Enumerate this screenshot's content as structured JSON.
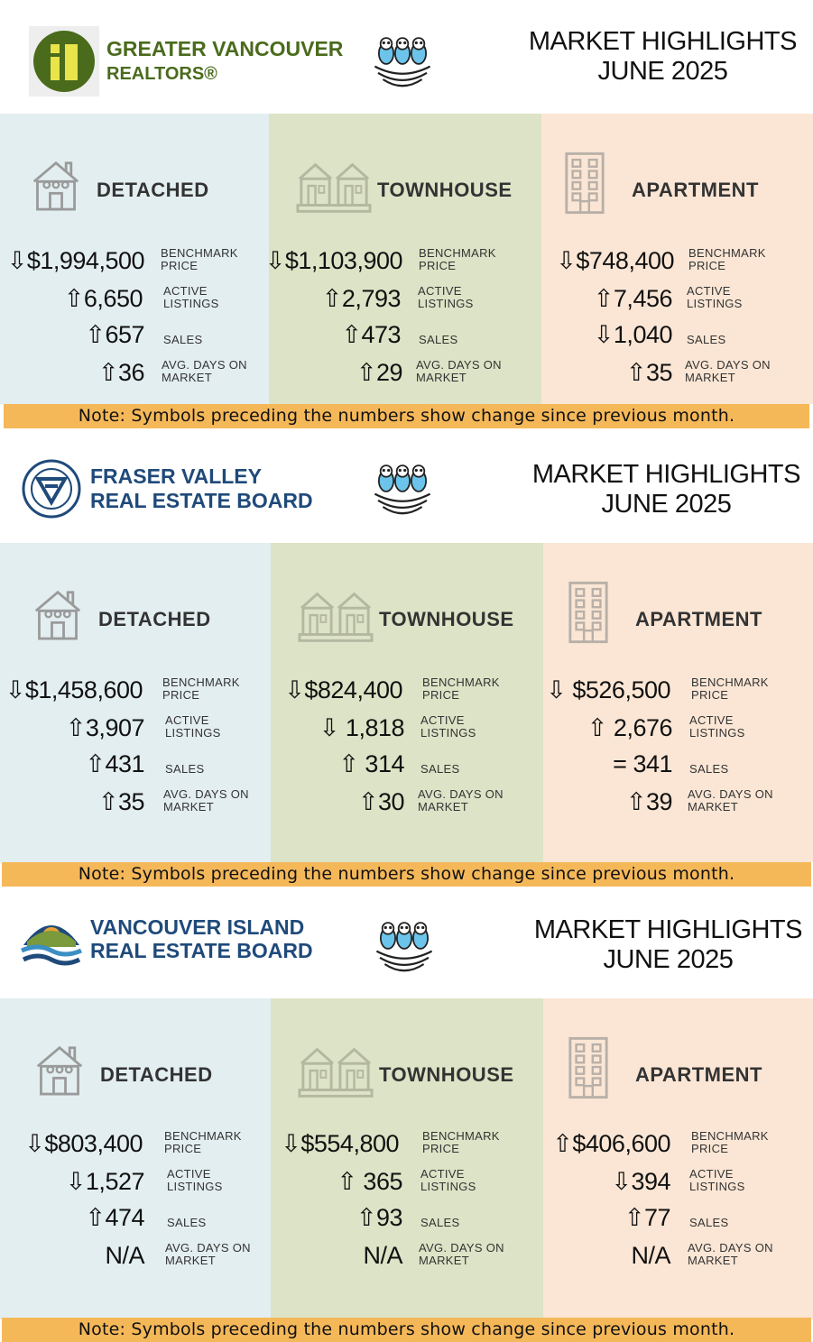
{
  "shared": {
    "title_line1": "MARKET HIGHLIGHTS",
    "title_line2": "JUNE 2025",
    "note": "Note: Symbols preceding the numbers show change since previous month.",
    "labels": {
      "benchmark_1": "BENCHMARK",
      "benchmark_2": "PRICE",
      "active_1": "ACTIVE",
      "active_2": "LISTINGS",
      "sales": "SALES",
      "days_1": "AVG. DAYS ON",
      "days_2": "MARKET"
    },
    "categories": {
      "detached": "DETACHED",
      "townhouse": "TOWNHOUSE",
      "apartment": "APARTMENT"
    }
  },
  "boards": [
    {
      "name_line1": "GREATER VANCOUVER",
      "name_line2": "REALTORS®",
      "logo_color": "#4a6b1c",
      "detached": {
        "price": "⇩$1,994,500",
        "active": "⇧6,650",
        "sales": "⇧657",
        "days": "⇧36"
      },
      "townhouse": {
        "price": "⇩$1,103,900",
        "active": "⇧2,793",
        "sales": "⇧473",
        "days": "⇧29"
      },
      "apartment": {
        "price": "⇩$748,400",
        "active": "⇧7,456",
        "sales": "⇩1,040",
        "days": "⇧35"
      }
    },
    {
      "name_line1": "FRASER VALLEY",
      "name_line2": "REAL ESTATE BOARD",
      "logo_color": "#1f4a7a",
      "detached": {
        "price": "⇩$1,458,600",
        "active": "⇧3,907",
        "sales": "⇧431",
        "days": "⇧35"
      },
      "townhouse": {
        "price": "⇩$824,400",
        "active": "⇩ 1,818",
        "sales": "⇧ 314",
        "days": "⇧30"
      },
      "apartment": {
        "price": "⇩ $526,500",
        "active": "⇧ 2,676",
        "sales": "= 341",
        "days": "⇧39"
      }
    },
    {
      "name_line1": "VANCOUVER ISLAND",
      "name_line2": "REAL ESTATE BOARD",
      "logo_color": "#1f4a7a",
      "detached": {
        "price": "⇩$803,400",
        "active": "⇩1,527",
        "sales": "⇧474",
        "days": "N/A"
      },
      "townhouse": {
        "price": "⇩$554,800",
        "active": "⇧ 365",
        "sales": "⇧93",
        "days": "N/A"
      },
      "apartment": {
        "price": "⇧$406,600",
        "active": "⇩394",
        "sales": "⇧77",
        "days": "N/A"
      }
    }
  ]
}
